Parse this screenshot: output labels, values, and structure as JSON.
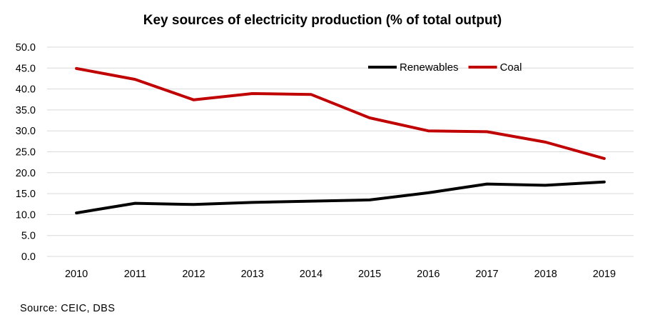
{
  "chart_data": {
    "type": "line",
    "title": "Key sources of electricity production (% of total output)",
    "x": [
      "2010",
      "2011",
      "2012",
      "2013",
      "2014",
      "2015",
      "2016",
      "2017",
      "2018",
      "2019"
    ],
    "series": [
      {
        "name": "Renewables",
        "color": "#000000",
        "values": [
          10.4,
          12.7,
          12.4,
          12.9,
          13.2,
          13.5,
          15.2,
          17.3,
          17.0,
          17.8
        ]
      },
      {
        "name": "Coal",
        "color": "#C00000",
        "values": [
          44.9,
          42.3,
          37.4,
          38.9,
          38.7,
          33.1,
          30.0,
          29.8,
          27.3,
          23.4
        ]
      }
    ],
    "ylim": [
      0,
      50
    ],
    "yticks": [
      "0.0",
      "5.0",
      "10.0",
      "15.0",
      "20.0",
      "25.0",
      "30.0",
      "35.0",
      "40.0",
      "45.0",
      "50.0"
    ],
    "grid": true,
    "legend_position": "top-right",
    "source": "Source: CEIC, DBS"
  }
}
